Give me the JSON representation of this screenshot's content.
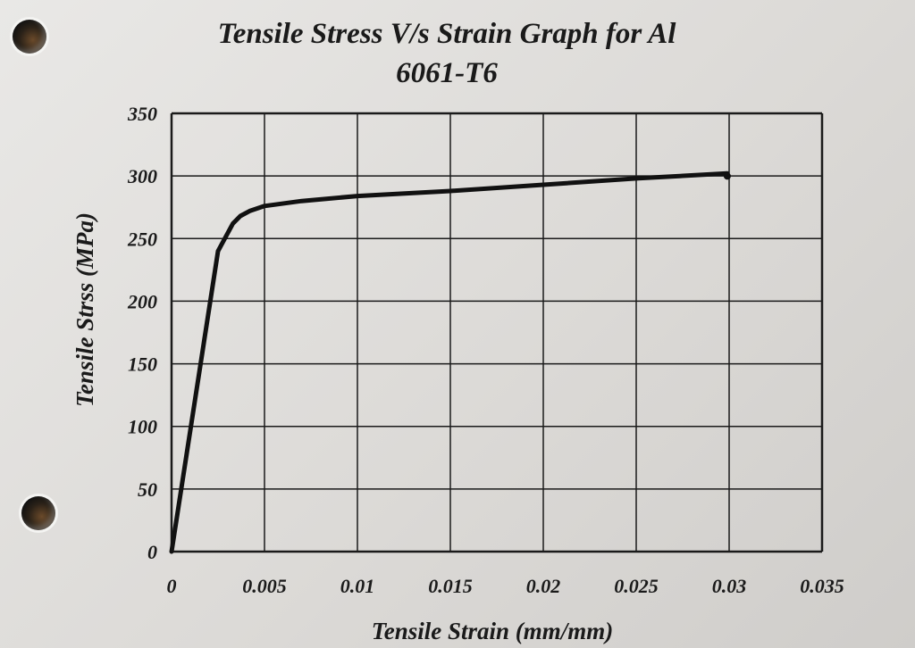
{
  "chart_data": {
    "type": "line",
    "title": "Tensile Stress V/s Strain Graph for Al",
    "subtitle": "6061-T6",
    "xlabel": "Tensile Strain (mm/mm)",
    "ylabel": "Tensile Strss (MPa)",
    "xlim": [
      0,
      0.035
    ],
    "ylim": [
      0,
      350
    ],
    "x_ticks": [
      "0",
      "0.005",
      "0.01",
      "0.015",
      "0.02",
      "0.025",
      "0.03",
      "0.035"
    ],
    "y_ticks": [
      "0",
      "50",
      "100",
      "150",
      "200",
      "250",
      "300",
      "350"
    ],
    "grid": true,
    "series": [
      {
        "x": [
          0,
          0.0025,
          0.0033,
          0.0037,
          0.0042,
          0.005,
          0.007,
          0.01,
          0.015,
          0.02,
          0.025,
          0.0299
        ],
        "y": [
          0,
          240,
          262,
          268,
          272,
          276,
          280,
          284,
          288,
          293,
          298,
          302
        ]
      }
    ],
    "colors": {
      "line": "#111111",
      "grid": "#1a1a1a"
    }
  }
}
